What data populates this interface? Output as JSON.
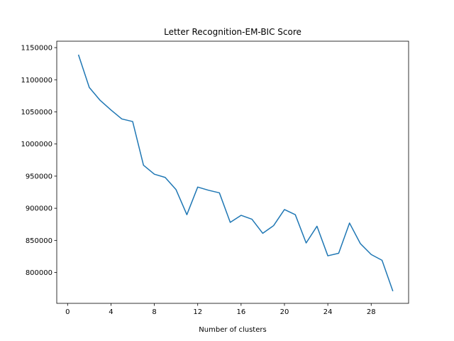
{
  "chart_data": {
    "type": "line",
    "title": "Letter Recognition-EM-BIC Score",
    "xlabel": "Number of clusters",
    "ylabel": "",
    "xlim": [
      -1,
      31.45
    ],
    "ylim": [
      752000,
      1160000
    ],
    "x_ticks": [
      0,
      4,
      8,
      12,
      16,
      20,
      24,
      28
    ],
    "y_ticks": [
      800000,
      850000,
      900000,
      950000,
      1000000,
      1050000,
      1100000,
      1150000
    ],
    "grid": false,
    "line_color": "#1f77b4",
    "series": [
      {
        "x": [
          1,
          2,
          3,
          4,
          5,
          6,
          7,
          8,
          9,
          10,
          11,
          12,
          13,
          14,
          15,
          16,
          17,
          18,
          19,
          20,
          21,
          22,
          23,
          24,
          25,
          26,
          27,
          28,
          29,
          30
        ],
        "values": [
          1139000,
          1088000,
          1068000,
          1053000,
          1039000,
          1035000,
          967000,
          953000,
          948000,
          929000,
          890000,
          933000,
          928000,
          924000,
          878000,
          889000,
          883000,
          861000,
          873000,
          898000,
          890000,
          846000,
          872000,
          826000,
          830000,
          877000,
          845000,
          828000,
          819000,
          771000
        ]
      }
    ]
  }
}
